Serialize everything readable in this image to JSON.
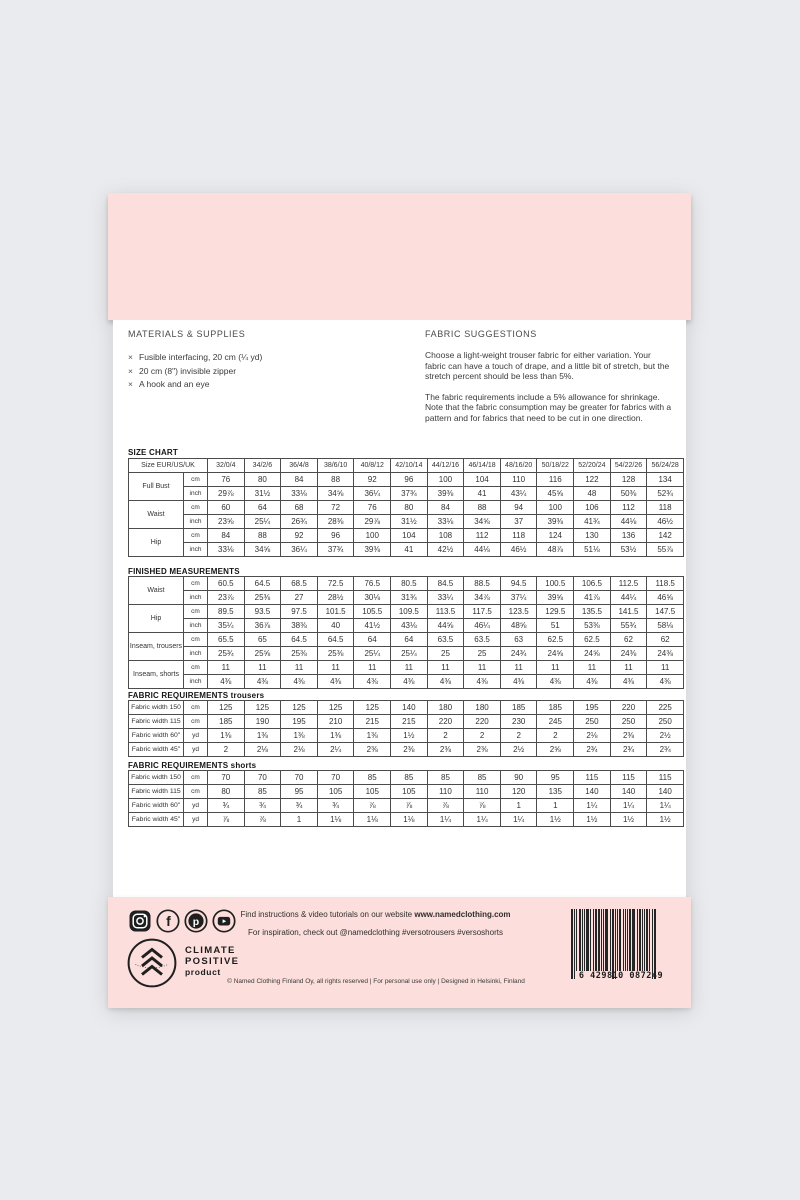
{
  "colors": {
    "pink": "#fcdedc",
    "background": "#e9ebee",
    "ink": "#333333"
  },
  "materials": {
    "heading": "MATERIALS & SUPPLIES",
    "bullet": "×",
    "items": [
      "Fusible interfacing, 20 cm (¼ yd)",
      "20 cm (8\") invisible zipper",
      "A hook and an eye"
    ]
  },
  "fabric_suggestions": {
    "heading": "FABRIC SUGGESTIONS",
    "paragraphs": [
      "Choose a light-weight trouser fabric for either variation. Your fabric can have a touch of drape, and a little bit of stretch, but the stretch percent should be less than 5%.",
      "The fabric requirements include a 5% allowance for shrinkage. Note that the fabric consumption may be greater for fabrics with a pattern and for fabrics that need to be cut in one direction."
    ]
  },
  "size_chart": {
    "title": "SIZE CHART",
    "header_label": "Size EUR/US/UK",
    "sizes": [
      "32/0/4",
      "34/2/6",
      "36/4/8",
      "38/6/10",
      "40/8/12",
      "42/10/14",
      "44/12/16",
      "46/14/18",
      "48/16/20",
      "50/18/22",
      "52/20/24",
      "54/22/26",
      "56/24/28"
    ],
    "groups": [
      {
        "label": "Full Bust",
        "rows": [
          {
            "unit": "cm",
            "values": [
              "76",
              "80",
              "84",
              "88",
              "92",
              "96",
              "100",
              "104",
              "110",
              "116",
              "122",
              "128",
              "134"
            ]
          },
          {
            "unit": "inch",
            "values": [
              "29⅞",
              "31½",
              "33⅛",
              "34⅝",
              "36¼",
              "37¾",
              "39⅜",
              "41",
              "43¼",
              "45⅝",
              "48",
              "50⅜",
              "52¾"
            ]
          }
        ]
      },
      {
        "label": "Waist",
        "rows": [
          {
            "unit": "cm",
            "values": [
              "60",
              "64",
              "68",
              "72",
              "76",
              "80",
              "84",
              "88",
              "94",
              "100",
              "106",
              "112",
              "118"
            ]
          },
          {
            "unit": "inch",
            "values": [
              "23⅝",
              "25¼",
              "26¾",
              "28⅜",
              "29⅞",
              "31½",
              "33⅛",
              "34⅝",
              "37",
              "39⅜",
              "41¾",
              "44⅛",
              "46½"
            ]
          }
        ]
      },
      {
        "label": "Hip",
        "rows": [
          {
            "unit": "cm",
            "values": [
              "84",
              "88",
              "92",
              "96",
              "100",
              "104",
              "108",
              "112",
              "118",
              "124",
              "130",
              "136",
              "142"
            ]
          },
          {
            "unit": "inch",
            "values": [
              "33⅛",
              "34⅝",
              "36¼",
              "37¾",
              "39⅜",
              "41",
              "42½",
              "44⅛",
              "46½",
              "48⅞",
              "51⅛",
              "53½",
              "55⅞"
            ]
          }
        ]
      }
    ]
  },
  "finished_measurements": {
    "title": "FINISHED MEASUREMENTS",
    "groups": [
      {
        "label": "Waist",
        "rows": [
          {
            "unit": "cm",
            "values": [
              "60.5",
              "64.5",
              "68.5",
              "72.5",
              "76.5",
              "80.5",
              "84.5",
              "88.5",
              "94.5",
              "100.5",
              "106.5",
              "112.5",
              "118.5"
            ]
          },
          {
            "unit": "inch",
            "values": [
              "23⅞",
              "25⅜",
              "27",
              "28½",
              "30⅛",
              "31¾",
              "33¼",
              "34⅞",
              "37¼",
              "39⅝",
              "41⅞",
              "44¼",
              "46⅝"
            ]
          }
        ]
      },
      {
        "label": "Hip",
        "rows": [
          {
            "unit": "cm",
            "values": [
              "89.5",
              "93.5",
              "97.5",
              "101.5",
              "105.5",
              "109.5",
              "113.5",
              "117.5",
              "123.5",
              "129.5",
              "135.5",
              "141.5",
              "147.5"
            ]
          },
          {
            "unit": "inch",
            "values": [
              "35¼",
              "36⅞",
              "38⅜",
              "40",
              "41½",
              "43⅛",
              "44⅝",
              "46¼",
              "48⅝",
              "51",
              "53⅜",
              "55¾",
              "58⅛"
            ]
          }
        ]
      },
      {
        "label": "Inseam, trousers",
        "rows": [
          {
            "unit": "cm",
            "values": [
              "65.5",
              "65",
              "64.5",
              "64.5",
              "64",
              "64",
              "63.5",
              "63.5",
              "63",
              "62.5",
              "62.5",
              "62",
              "62"
            ]
          },
          {
            "unit": "inch",
            "values": [
              "25¾",
              "25⅝",
              "25⅜",
              "25⅜",
              "25¼",
              "25¼",
              "25",
              "25",
              "24¾",
              "24⅝",
              "24⅝",
              "24⅜",
              "24⅜"
            ]
          }
        ]
      },
      {
        "label": "Inseam, shorts",
        "rows": [
          {
            "unit": "cm",
            "values": [
              "11",
              "11",
              "11",
              "11",
              "11",
              "11",
              "11",
              "11",
              "11",
              "11",
              "11",
              "11",
              "11"
            ]
          },
          {
            "unit": "inch",
            "values": [
              "4⅜",
              "4⅜",
              "4⅜",
              "4⅜",
              "4⅜",
              "4⅜",
              "4⅜",
              "4⅜",
              "4⅜",
              "4⅜",
              "4⅜",
              "4⅜",
              "4⅜"
            ]
          }
        ]
      }
    ]
  },
  "fabric_requirements_trousers": {
    "title": "FABRIC REQUIREMENTS trousers",
    "rows": [
      {
        "label": "Fabric width 150",
        "unit": "cm",
        "values": [
          "125",
          "125",
          "125",
          "125",
          "125",
          "140",
          "180",
          "180",
          "185",
          "185",
          "195",
          "220",
          "225"
        ]
      },
      {
        "label": "Fabric width 115",
        "unit": "cm",
        "values": [
          "185",
          "190",
          "195",
          "210",
          "215",
          "215",
          "220",
          "220",
          "230",
          "245",
          "250",
          "250",
          "250"
        ]
      },
      {
        "label": "Fabric width 60\"",
        "unit": "yd",
        "values": [
          "1⅜",
          "1⅜",
          "1⅜",
          "1⅜",
          "1⅜",
          "1½",
          "2",
          "2",
          "2",
          "2",
          "2⅛",
          "2⅜",
          "2½"
        ]
      },
      {
        "label": "Fabric width 45\"",
        "unit": "yd",
        "values": [
          "2",
          "2⅛",
          "2⅛",
          "2¼",
          "2⅜",
          "2⅜",
          "2⅜",
          "2⅜",
          "2½",
          "2⅝",
          "2¾",
          "2¾",
          "2¾"
        ]
      }
    ]
  },
  "fabric_requirements_shorts": {
    "title": "FABRIC REQUIREMENTS shorts",
    "rows": [
      {
        "label": "Fabric width 150",
        "unit": "cm",
        "values": [
          "70",
          "70",
          "70",
          "70",
          "85",
          "85",
          "85",
          "85",
          "90",
          "95",
          "115",
          "115",
          "115"
        ]
      },
      {
        "label": "Fabric width 115",
        "unit": "cm",
        "values": [
          "80",
          "85",
          "95",
          "105",
          "105",
          "105",
          "110",
          "110",
          "120",
          "135",
          "140",
          "140",
          "140"
        ]
      },
      {
        "label": "Fabric width 60\"",
        "unit": "yd",
        "values": [
          "¾",
          "¾",
          "¾",
          "¾",
          "⅞",
          "⅞",
          "⅞",
          "⅞",
          "1",
          "1",
          "1¼",
          "1¼",
          "1¼"
        ]
      },
      {
        "label": "Fabric width 45\"",
        "unit": "yd",
        "values": [
          "⅞",
          "⅞",
          "1",
          "1⅛",
          "1⅛",
          "1⅛",
          "1¼",
          "1¼",
          "1¼",
          "1½",
          "1½",
          "1½",
          "1½"
        ]
      }
    ]
  },
  "footer": {
    "social_icons": [
      "instagram-icon",
      "facebook-icon",
      "pinterest-icon",
      "youtube-icon"
    ],
    "line1_prefix": "Find instructions & video tutorials on our website ",
    "line1_bold": "www.namedclothing.com",
    "line2": "For inspiration, check out @namedclothing #versotrousers #versoshorts",
    "climate_badge": {
      "line1": "CLIMATE",
      "line2": "POSITIVE",
      "line3": "product"
    },
    "copyright": "© Named Clothing Finland Oy, all rights reserved | For personal use only | Designed in Helsinki, Finland",
    "barcode_digits": "6 429810 087249"
  }
}
